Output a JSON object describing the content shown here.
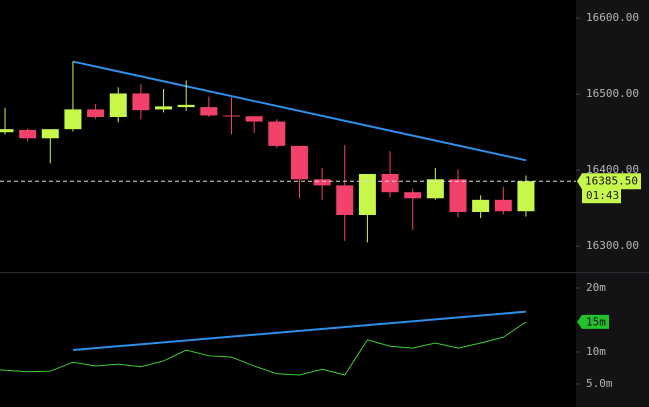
{
  "chart_data": [
    {
      "type": "candlestick",
      "open": [
        16450,
        16453,
        16442,
        16454,
        16480,
        16470,
        16501,
        16480,
        16483,
        16483,
        16472,
        16471,
        16464,
        16432,
        16388,
        16380,
        16341,
        16395,
        16371,
        16363,
        16388,
        16345,
        16361,
        16346
      ],
      "high": [
        16482,
        16455,
        16454,
        16543,
        16487,
        16509,
        16513,
        16507,
        16518,
        16497,
        16496,
        16471,
        16467,
        16432,
        16403,
        16433,
        16395,
        16425,
        16376,
        16403,
        16401,
        16367,
        16378,
        16393
      ],
      "low": [
        16447,
        16438,
        16409,
        16451,
        16467,
        16463,
        16467,
        16476,
        16478,
        16470,
        16447,
        16449,
        16429,
        16363,
        16361,
        16307,
        16305,
        16364,
        16321,
        16361,
        16338,
        16337,
        16342,
        16339
      ],
      "close": [
        16454,
        16442,
        16454,
        16480,
        16470,
        16501,
        16479,
        16484,
        16486,
        16472,
        16471,
        16464,
        16432,
        16388,
        16380,
        16341,
        16395,
        16371,
        16363,
        16388,
        16345,
        16361,
        16346,
        16385.5
      ],
      "up_color": "#c8f74c",
      "down_color": "#f2416b",
      "ylim": [
        16266,
        16624
      ],
      "yticks": [
        {
          "value": 16300,
          "label": "16300.00"
        },
        {
          "value": 16400,
          "label": "16400.00"
        },
        {
          "value": 16500,
          "label": "16500.00"
        },
        {
          "value": 16600,
          "label": "16600.00"
        }
      ],
      "trendline": {
        "start": 16543,
        "end": 16413,
        "color": "#2e8ee8"
      },
      "price_line": {
        "value": 16385.5,
        "label": "16385.50"
      },
      "countdown": "01:43"
    },
    {
      "type": "line",
      "values": [
        7.2,
        6.9,
        7.0,
        8.4,
        7.8,
        8.1,
        7.7,
        8.6,
        10.3,
        9.4,
        9.2,
        7.8,
        6.6,
        6.4,
        7.3,
        6.4,
        11.9,
        10.9,
        10.6,
        11.4,
        10.6,
        11.4,
        12.3,
        14.7
      ],
      "color": "#3ccf2c",
      "ylim": [
        1.4,
        22.5
      ],
      "yticks": [
        {
          "value": 5,
          "label": "5.0m"
        },
        {
          "value": 10,
          "label": "10m"
        },
        {
          "value": 20,
          "label": "20m"
        }
      ],
      "trendline": {
        "start": 10.3,
        "end": 16.3,
        "color": "#2e8ee8"
      },
      "current": {
        "value": 14.7,
        "label": "15m"
      }
    }
  ]
}
